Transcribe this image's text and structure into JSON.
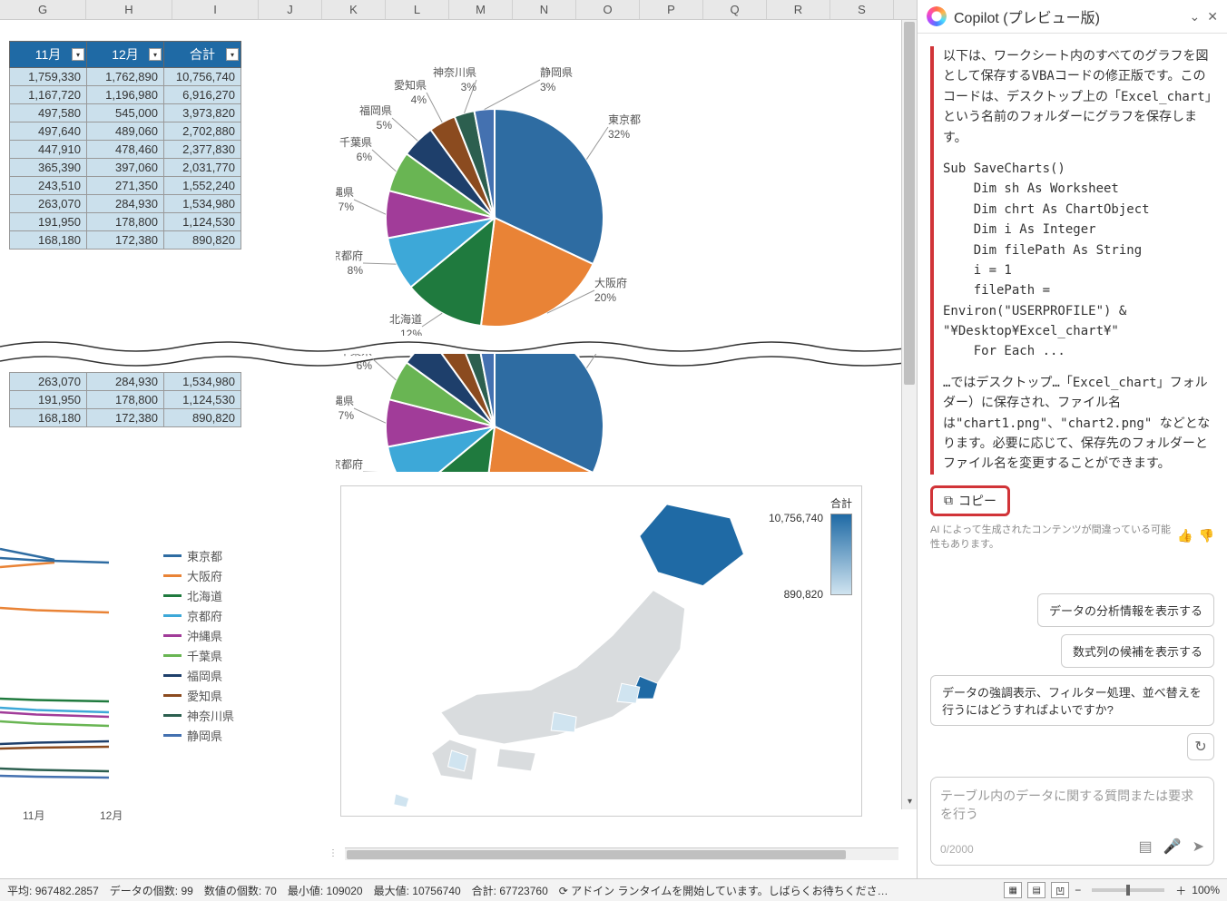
{
  "columns": [
    "G",
    "H",
    "I",
    "J",
    "K",
    "L",
    "M",
    "N",
    "O",
    "P",
    "Q",
    "R",
    "S"
  ],
  "table": {
    "headers": [
      "11月",
      "12月",
      "合計"
    ],
    "rows": [
      [
        "1,759,330",
        "1,762,890",
        "10,756,740"
      ],
      [
        "1,167,720",
        "1,196,980",
        "6,916,270"
      ],
      [
        "497,580",
        "545,000",
        "3,973,820"
      ],
      [
        "497,640",
        "489,060",
        "2,702,880"
      ],
      [
        "447,910",
        "478,460",
        "2,377,830"
      ],
      [
        "365,390",
        "397,060",
        "2,031,770"
      ],
      [
        "243,510",
        "271,350",
        "1,552,240"
      ],
      [
        "263,070",
        "284,930",
        "1,534,980"
      ],
      [
        "191,950",
        "178,800",
        "1,124,530"
      ],
      [
        "168,180",
        "172,380",
        "890,820"
      ]
    ],
    "rows_lower": [
      [
        "263,070",
        "284,930",
        "1,534,980"
      ],
      [
        "191,950",
        "178,800",
        "1,124,530"
      ],
      [
        "168,180",
        "172,380",
        "890,820"
      ]
    ]
  },
  "pie": {
    "type": "pie",
    "slices": [
      {
        "label": "東京都",
        "sub": "32%",
        "value": 32,
        "color": "#2e6ca2"
      },
      {
        "label": "大阪府",
        "sub": "20%",
        "value": 20,
        "color": "#e98336"
      },
      {
        "label": "北海道",
        "sub": "12%",
        "value": 12,
        "color": "#1f7a3e"
      },
      {
        "label": "京都府",
        "sub": "8%",
        "value": 8,
        "color": "#3da8d8"
      },
      {
        "label": "沖縄県",
        "sub": "7%",
        "value": 7,
        "color": "#a13c99"
      },
      {
        "label": "千葉県",
        "sub": "6%",
        "value": 6,
        "color": "#69b553"
      },
      {
        "label": "福岡県",
        "sub": "5%",
        "value": 5,
        "color": "#1e3f6b"
      },
      {
        "label": "愛知県",
        "sub": "4%",
        "value": 4,
        "color": "#8b4b1f"
      },
      {
        "label": "神奈川県",
        "sub": "3%",
        "value": 3,
        "color": "#2c5f4f"
      },
      {
        "label": "静岡県",
        "sub": "3%",
        "value": 3,
        "color": "#4471b0"
      }
    ]
  },
  "legend": {
    "items": [
      {
        "label": "東京都",
        "color": "#2e6ca2"
      },
      {
        "label": "大阪府",
        "color": "#e98336"
      },
      {
        "label": "北海道",
        "color": "#1f7a3e"
      },
      {
        "label": "京都府",
        "color": "#3da8d8"
      },
      {
        "label": "沖縄県",
        "color": "#a13c99"
      },
      {
        "label": "千葉県",
        "color": "#69b553"
      },
      {
        "label": "福岡県",
        "color": "#1e3f6b"
      },
      {
        "label": "愛知県",
        "color": "#8b4b1f"
      },
      {
        "label": "神奈川県",
        "color": "#2c5f4f"
      },
      {
        "label": "静岡県",
        "color": "#4471b0"
      }
    ]
  },
  "months": {
    "m1": "11月",
    "m2": "12月"
  },
  "map": {
    "title": "合計",
    "max": "10,756,740",
    "min": "890,820",
    "fill_highlight": "#1f6aa5",
    "fill_light": "#d0e4f0",
    "fill_gray": "#d9dcde"
  },
  "status": {
    "avg_label": "平均:",
    "avg": "967482.2857",
    "count_label": "データの個数:",
    "count": "99",
    "numcount_label": "数値の個数:",
    "numcount": "70",
    "min_label": "最小値:",
    "min": "109020",
    "max_label": "最大値:",
    "max": "10756740",
    "sum_label": "合計:",
    "sum": "67723760",
    "addin": "アドイン ランタイムを開始しています。しばらくお待ちくださ…",
    "zoom": "100%"
  },
  "copilot": {
    "title": "Copilot (プレビュー版)",
    "p1": "以下は、ワークシート内のすべてのグラフを図として保存するVBAコードの修正版です。このコードは、デスクトップ上の「Excel_chart」という名前のフォルダーにグラフを保存します。",
    "code": "Sub SaveCharts()\n    Dim sh As Worksheet\n    Dim chrt As ChartObject\n    Dim i As Integer\n    Dim filePath As String\n    i = 1\n    filePath =\nEnviron(\"USERPROFILE\") &\n\"¥Desktop¥Excel_chart¥\"\n    For Each ...",
    "p2": "…ではデスクトップ…「Excel_chart」フォルダー）に保存され、ファイル名は\"chart1.png\"、\"chart2.png\" などとなります。必要に応じて、保存先のフォルダーとファイル名を変更することができます。",
    "copy": "コピー",
    "disclaimer": "AI によって生成されたコンテンツが間違っている可能性もあります。",
    "sugg1": "データの分析情報を表示する",
    "sugg2": "数式列の候補を表示する",
    "sugg3": "データの強調表示、フィルター処理、並べ替えを行うにはどうすればよいですか?",
    "placeholder": "テーブル内のデータに関する質問または要求を行う",
    "counter": "0/2000"
  }
}
